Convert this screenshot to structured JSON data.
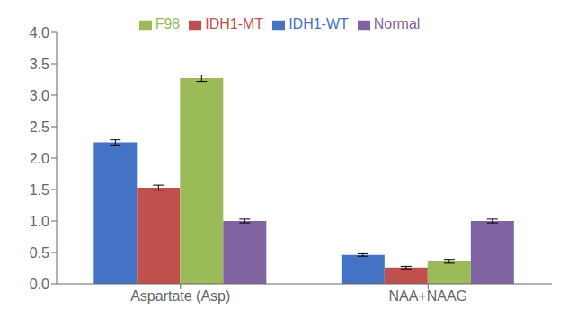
{
  "chart_data": {
    "type": "bar",
    "categories": [
      "Aspartate (Asp)",
      "NAA+NAAG"
    ],
    "series": [
      {
        "name": "IDH1-WT",
        "color": "#4472C4",
        "values": [
          2.25,
          0.46
        ],
        "errors": [
          0.04,
          0.02
        ]
      },
      {
        "name": "IDH1-MT",
        "color": "#C0504D",
        "values": [
          1.53,
          0.26
        ],
        "errors": [
          0.04,
          0.02
        ]
      },
      {
        "name": "F98",
        "color": "#9BBB59",
        "values": [
          3.27,
          0.36
        ],
        "errors": [
          0.05,
          0.03
        ]
      },
      {
        "name": "Normal",
        "color": "#8064A2",
        "values": [
          1.0,
          1.0
        ],
        "errors": [
          0.03,
          0.03
        ]
      }
    ],
    "ylim": [
      0,
      4
    ],
    "yticks": [
      {
        "value": 0,
        "label": "0.0"
      },
      0.5,
      {
        "value": 1,
        "label": "1.0"
      },
      1.5,
      {
        "value": 2,
        "label": "2.0"
      },
      2.5,
      {
        "value": 3,
        "label": "3.0"
      },
      3.5,
      {
        "value": 4,
        "label": "4.0"
      }
    ],
    "grid": false,
    "legend": "top"
  }
}
